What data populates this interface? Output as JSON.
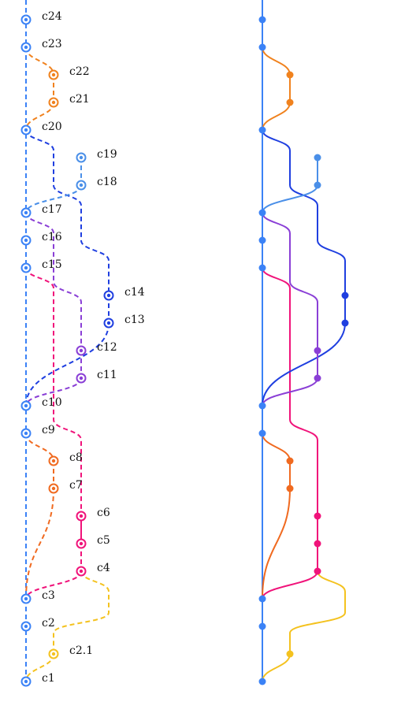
{
  "colors": {
    "main": "#3b82f6",
    "orange": "#f0821e",
    "royal": "#1f3fe0",
    "sky": "#4a8fe8",
    "purple": "#8a3fd6",
    "pink": "#f0137a",
    "orangeRed": "#f06a20",
    "gold": "#f4c21f"
  },
  "commits": [
    {
      "id": "c24",
      "label": "c24",
      "lane": 0,
      "color": "main"
    },
    {
      "id": "c23",
      "label": "c23",
      "lane": 0,
      "color": "main"
    },
    {
      "id": "c22",
      "label": "c22",
      "lane": 1,
      "color": "orange"
    },
    {
      "id": "c21",
      "label": "c21",
      "lane": 1,
      "color": "orange"
    },
    {
      "id": "c20",
      "label": "c20",
      "lane": 0,
      "color": "main"
    },
    {
      "id": "c19",
      "label": "c19",
      "lane": 2,
      "color": "sky"
    },
    {
      "id": "c18",
      "label": "c18",
      "lane": 2,
      "color": "sky"
    },
    {
      "id": "c17",
      "label": "c17",
      "lane": 0,
      "color": "main"
    },
    {
      "id": "c16",
      "label": "c16",
      "lane": 0,
      "color": "main"
    },
    {
      "id": "c15",
      "label": "c15",
      "lane": 0,
      "color": "main"
    },
    {
      "id": "c14",
      "label": "c14",
      "lane": 3,
      "color": "royal"
    },
    {
      "id": "c13",
      "label": "c13",
      "lane": 3,
      "color": "royal"
    },
    {
      "id": "c12",
      "label": "c12",
      "lane": 2,
      "color": "purple"
    },
    {
      "id": "c11",
      "label": "c11",
      "lane": 2,
      "color": "purple"
    },
    {
      "id": "c10",
      "label": "c10",
      "lane": 0,
      "color": "main"
    },
    {
      "id": "c9",
      "label": "c9",
      "lane": 0,
      "color": "main"
    },
    {
      "id": "c8",
      "label": "c8",
      "lane": 1,
      "color": "orangeRed"
    },
    {
      "id": "c7",
      "label": "c7",
      "lane": 1,
      "color": "orangeRed"
    },
    {
      "id": "c6",
      "label": "c6",
      "lane": 2,
      "color": "pink"
    },
    {
      "id": "c5",
      "label": "c5",
      "lane": 2,
      "color": "pink"
    },
    {
      "id": "c4",
      "label": "c4",
      "lane": 2,
      "color": "pink"
    },
    {
      "id": "c3",
      "label": "c3",
      "lane": 0,
      "color": "main"
    },
    {
      "id": "c2",
      "label": "c2",
      "lane": 0,
      "color": "main"
    },
    {
      "id": "c2.1",
      "label": "c2.1",
      "lane": 1,
      "color": "gold"
    },
    {
      "id": "c1",
      "label": "c1",
      "lane": 0,
      "color": "main"
    }
  ],
  "edges": [
    {
      "from": "c23",
      "to": "c22",
      "color": "orange",
      "route": [
        0,
        1
      ]
    },
    {
      "from": "c22",
      "to": "c21",
      "color": "orange",
      "route": [
        1,
        1
      ]
    },
    {
      "from": "c21",
      "to": "c20",
      "color": "orange",
      "route": [
        1,
        0
      ]
    },
    {
      "from": "c20",
      "to": "c14",
      "color": "royal",
      "route": [
        0,
        1,
        2,
        3
      ]
    },
    {
      "from": "c19",
      "to": "c18",
      "color": "sky",
      "route": [
        2,
        2
      ]
    },
    {
      "from": "c18",
      "to": "c17",
      "color": "sky",
      "route": [
        2,
        0
      ]
    },
    {
      "from": "c17",
      "to": "c12",
      "color": "purple",
      "route": [
        0,
        1,
        2
      ]
    },
    {
      "from": "c15",
      "to": "c4",
      "color": "pink",
      "route": [
        0,
        1,
        2
      ]
    },
    {
      "from": "c14",
      "to": "c13",
      "color": "royal",
      "route": [
        3,
        3
      ]
    },
    {
      "from": "c13",
      "to": "c10",
      "color": "royal",
      "route": [
        3,
        0
      ]
    },
    {
      "from": "c12",
      "to": "c11",
      "color": "purple",
      "route": [
        2,
        2
      ]
    },
    {
      "from": "c11",
      "to": "c10",
      "color": "purple",
      "route": [
        2,
        0
      ]
    },
    {
      "from": "c9",
      "to": "c8",
      "color": "orangeRed",
      "route": [
        0,
        1
      ]
    },
    {
      "from": "c8",
      "to": "c7",
      "color": "orangeRed",
      "route": [
        1,
        1
      ]
    },
    {
      "from": "c7",
      "to": "c3",
      "color": "orangeRed",
      "route": [
        1,
        0
      ]
    },
    {
      "from": "c6",
      "to": "c5",
      "color": "pink",
      "route": [
        2,
        2
      ]
    },
    {
      "from": "c5",
      "to": "c4",
      "color": "pink",
      "route": [
        2,
        2
      ]
    },
    {
      "from": "c4",
      "to": "c3",
      "color": "pink",
      "route": [
        2,
        0
      ]
    },
    {
      "from": "c4",
      "to": "c2.1",
      "color": "gold",
      "route": [
        2,
        3,
        1
      ]
    },
    {
      "from": "c2.1",
      "to": "c1",
      "color": "gold",
      "route": [
        1,
        0
      ]
    }
  ]
}
